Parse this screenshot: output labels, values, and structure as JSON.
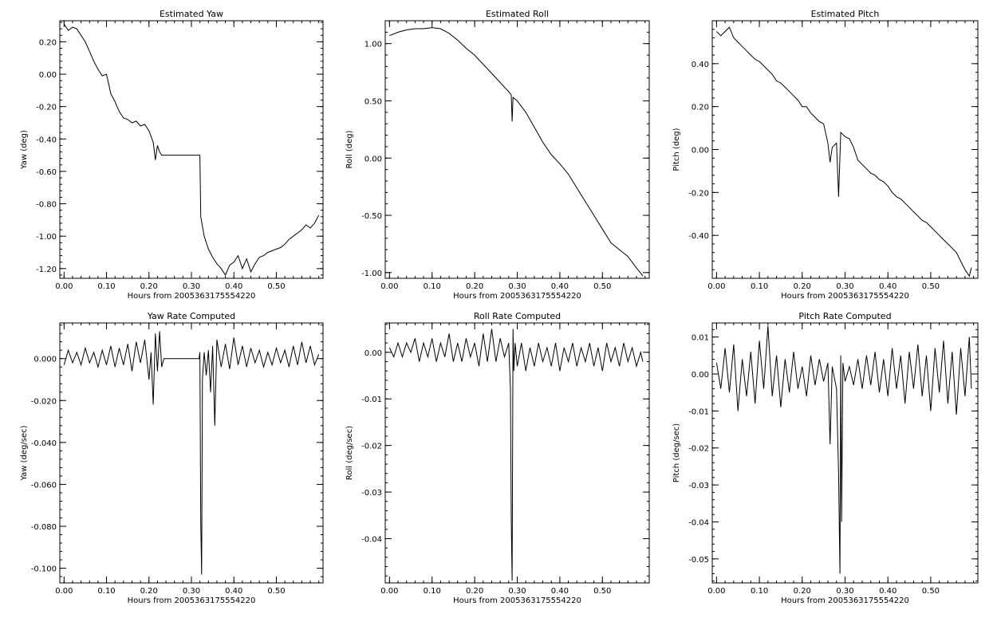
{
  "chart_data": [
    {
      "type": "line",
      "title": "Estimated Yaw",
      "xlabel": "Hours from 2005363175554220",
      "ylabel": "Yaw (deg)",
      "xlim": [
        -0.01,
        0.61
      ],
      "ylim": [
        -1.26,
        0.33
      ],
      "x_ticks": [
        0.0,
        0.1,
        0.2,
        0.3,
        0.4,
        0.5
      ],
      "x_tick_labels": [
        "0.00",
        "0.10",
        "0.20",
        "0.30",
        "0.40",
        "0.50"
      ],
      "y_ticks": [
        0.2,
        0.0,
        -0.2,
        -0.4,
        -0.6,
        -0.8,
        -1.0,
        -1.2
      ],
      "y_tick_labels": [
        "0.20",
        "0.00",
        "-0.20",
        "-0.40",
        "-0.60",
        "-0.80",
        "-1.00",
        "-1.20"
      ],
      "grid": false,
      "series": [
        {
          "x": [
            0.0,
            0.01,
            0.02,
            0.03,
            0.04,
            0.05,
            0.06,
            0.07,
            0.08,
            0.09,
            0.1,
            0.11,
            0.12,
            0.13,
            0.14,
            0.15,
            0.16,
            0.17,
            0.18,
            0.19,
            0.2,
            0.21,
            0.215,
            0.22,
            0.225,
            0.23,
            0.24,
            0.25,
            0.26,
            0.27,
            0.28,
            0.29,
            0.3,
            0.31,
            0.32,
            0.322,
            0.33,
            0.34,
            0.35,
            0.36,
            0.37,
            0.38,
            0.39,
            0.4,
            0.41,
            0.42,
            0.43,
            0.44,
            0.45,
            0.46,
            0.47,
            0.48,
            0.49,
            0.5,
            0.51,
            0.52,
            0.53,
            0.54,
            0.55,
            0.56,
            0.57,
            0.58,
            0.59,
            0.6
          ],
          "y": [
            0.31,
            0.27,
            0.29,
            0.28,
            0.24,
            0.2,
            0.14,
            0.08,
            0.03,
            -0.01,
            0.0,
            -0.12,
            -0.17,
            -0.23,
            -0.27,
            -0.28,
            -0.3,
            -0.29,
            -0.32,
            -0.31,
            -0.35,
            -0.42,
            -0.53,
            -0.44,
            -0.48,
            -0.5,
            -0.5,
            -0.5,
            -0.5,
            -0.5,
            -0.5,
            -0.5,
            -0.5,
            -0.5,
            -0.5,
            -0.88,
            -1.0,
            -1.08,
            -1.13,
            -1.17,
            -1.2,
            -1.24,
            -1.18,
            -1.16,
            -1.12,
            -1.2,
            -1.14,
            -1.22,
            -1.17,
            -1.13,
            -1.12,
            -1.1,
            -1.09,
            -1.08,
            -1.07,
            -1.05,
            -1.02,
            -1.0,
            -0.98,
            -0.96,
            -0.93,
            -0.95,
            -0.92,
            -0.87
          ]
        }
      ]
    },
    {
      "type": "line",
      "title": "Estimated Roll",
      "xlabel": "Hours from 2005363175554220",
      "ylabel": "Roll (deg)",
      "xlim": [
        -0.01,
        0.61
      ],
      "ylim": [
        -1.05,
        1.2
      ],
      "x_ticks": [
        0.0,
        0.1,
        0.2,
        0.3,
        0.4,
        0.5
      ],
      "x_tick_labels": [
        "0.00",
        "0.10",
        "0.20",
        "0.30",
        "0.40",
        "0.50"
      ],
      "y_ticks": [
        1.0,
        0.5,
        0.0,
        -0.5,
        -1.0
      ],
      "y_tick_labels": [
        "1.00",
        "0.50",
        "0.00",
        "-0.50",
        "-1.00"
      ],
      "grid": false,
      "series": [
        {
          "x": [
            0.0,
            0.02,
            0.04,
            0.06,
            0.08,
            0.1,
            0.12,
            0.14,
            0.16,
            0.18,
            0.2,
            0.22,
            0.24,
            0.26,
            0.28,
            0.286,
            0.288,
            0.29,
            0.3,
            0.32,
            0.34,
            0.36,
            0.38,
            0.4,
            0.42,
            0.44,
            0.46,
            0.48,
            0.5,
            0.52,
            0.54,
            0.56,
            0.58,
            0.595
          ],
          "y": [
            1.07,
            1.1,
            1.12,
            1.13,
            1.13,
            1.14,
            1.13,
            1.09,
            1.03,
            0.96,
            0.9,
            0.82,
            0.74,
            0.66,
            0.58,
            0.55,
            0.32,
            0.53,
            0.5,
            0.4,
            0.27,
            0.14,
            0.03,
            -0.05,
            -0.14,
            -0.26,
            -0.38,
            -0.5,
            -0.62,
            -0.74,
            -0.8,
            -0.86,
            -0.96,
            -1.03
          ]
        }
      ]
    },
    {
      "type": "line",
      "title": "Estimated Pitch",
      "xlabel": "Hours from 2005363175554220",
      "ylabel": "Pitch (deg)",
      "xlim": [
        -0.01,
        0.61
      ],
      "ylim": [
        -0.6,
        0.6
      ],
      "x_ticks": [
        0.0,
        0.1,
        0.2,
        0.3,
        0.4,
        0.5
      ],
      "x_tick_labels": [
        "0.00",
        "0.10",
        "0.20",
        "0.30",
        "0.40",
        "0.50"
      ],
      "y_ticks": [
        0.4,
        0.2,
        0.0,
        -0.2,
        -0.4
      ],
      "y_tick_labels": [
        "0.40",
        "0.20",
        "0.00",
        "-0.20",
        "-0.40"
      ],
      "grid": false,
      "series": [
        {
          "x": [
            0.0,
            0.01,
            0.02,
            0.03,
            0.04,
            0.05,
            0.06,
            0.07,
            0.08,
            0.09,
            0.1,
            0.11,
            0.12,
            0.13,
            0.14,
            0.15,
            0.16,
            0.17,
            0.18,
            0.19,
            0.2,
            0.21,
            0.22,
            0.23,
            0.24,
            0.25,
            0.26,
            0.265,
            0.27,
            0.28,
            0.285,
            0.29,
            0.295,
            0.3,
            0.31,
            0.32,
            0.33,
            0.34,
            0.35,
            0.36,
            0.37,
            0.38,
            0.39,
            0.4,
            0.41,
            0.42,
            0.43,
            0.44,
            0.45,
            0.46,
            0.47,
            0.48,
            0.49,
            0.5,
            0.51,
            0.52,
            0.53,
            0.54,
            0.55,
            0.56,
            0.57,
            0.58,
            0.59,
            0.595
          ],
          "y": [
            0.55,
            0.53,
            0.55,
            0.57,
            0.52,
            0.5,
            0.48,
            0.46,
            0.44,
            0.42,
            0.41,
            0.39,
            0.37,
            0.35,
            0.32,
            0.31,
            0.29,
            0.27,
            0.25,
            0.23,
            0.2,
            0.2,
            0.17,
            0.15,
            0.13,
            0.12,
            0.03,
            -0.06,
            0.01,
            0.03,
            -0.22,
            0.08,
            0.07,
            0.06,
            0.05,
            0.01,
            -0.05,
            -0.07,
            -0.09,
            -0.11,
            -0.12,
            -0.14,
            -0.15,
            -0.17,
            -0.2,
            -0.22,
            -0.23,
            -0.25,
            -0.27,
            -0.29,
            -0.31,
            -0.33,
            -0.34,
            -0.36,
            -0.38,
            -0.4,
            -0.42,
            -0.44,
            -0.46,
            -0.48,
            -0.52,
            -0.56,
            -0.59,
            -0.55
          ]
        }
      ]
    },
    {
      "type": "line",
      "title": "Yaw Rate Computed",
      "xlabel": "Hours from 2005363175554220",
      "ylabel": "Yaw (deg/sec)",
      "xlim": [
        -0.01,
        0.61
      ],
      "ylim": [
        -0.107,
        0.017
      ],
      "x_ticks": [
        0.0,
        0.1,
        0.2,
        0.3,
        0.4,
        0.5
      ],
      "x_tick_labels": [
        "0.00",
        "0.10",
        "0.20",
        "0.30",
        "0.40",
        "0.50"
      ],
      "y_ticks": [
        0.0,
        -0.02,
        -0.04,
        -0.06,
        -0.08,
        -0.1
      ],
      "y_tick_labels": [
        "0.000",
        "-0.020",
        "-0.040",
        "-0.060",
        "-0.080",
        "-0.100"
      ],
      "grid": false,
      "series": [
        {
          "x": [
            0.0,
            0.01,
            0.02,
            0.03,
            0.04,
            0.05,
            0.06,
            0.07,
            0.08,
            0.09,
            0.1,
            0.11,
            0.12,
            0.13,
            0.14,
            0.15,
            0.16,
            0.17,
            0.18,
            0.19,
            0.2,
            0.205,
            0.21,
            0.215,
            0.22,
            0.225,
            0.23,
            0.235,
            0.24,
            0.25,
            0.26,
            0.27,
            0.28,
            0.29,
            0.3,
            0.31,
            0.318,
            0.32,
            0.322,
            0.324,
            0.326,
            0.33,
            0.335,
            0.34,
            0.345,
            0.35,
            0.355,
            0.36,
            0.37,
            0.38,
            0.39,
            0.4,
            0.41,
            0.42,
            0.43,
            0.44,
            0.45,
            0.46,
            0.47,
            0.48,
            0.49,
            0.5,
            0.51,
            0.52,
            0.53,
            0.54,
            0.55,
            0.56,
            0.57,
            0.58,
            0.59,
            0.6
          ],
          "y": [
            -0.003,
            0.004,
            -0.002,
            0.003,
            -0.003,
            0.005,
            -0.002,
            0.003,
            -0.004,
            0.004,
            -0.003,
            0.006,
            -0.004,
            0.005,
            -0.003,
            0.007,
            -0.006,
            0.008,
            -0.002,
            0.009,
            -0.01,
            0.003,
            -0.022,
            0.012,
            -0.006,
            0.013,
            -0.004,
            0.0,
            0.0,
            0.0,
            0.0,
            0.0,
            0.0,
            0.0,
            0.0,
            0.0,
            0.0,
            0.003,
            -0.078,
            -0.103,
            -0.01,
            0.003,
            -0.008,
            0.004,
            -0.016,
            0.006,
            -0.032,
            0.009,
            -0.004,
            0.007,
            -0.005,
            0.01,
            -0.003,
            0.006,
            -0.004,
            0.005,
            -0.002,
            0.004,
            -0.004,
            0.003,
            -0.003,
            0.005,
            -0.002,
            0.004,
            -0.004,
            0.006,
            -0.003,
            0.008,
            -0.002,
            0.006,
            -0.003,
            0.002
          ]
        }
      ]
    },
    {
      "type": "line",
      "title": "Roll Rate Computed",
      "xlabel": "Hours from 2005363175554220",
      "ylabel": "Roll (deg/sec)",
      "xlim": [
        -0.01,
        0.61
      ],
      "ylim": [
        -0.0495,
        0.0063
      ],
      "x_ticks": [
        0.0,
        0.1,
        0.2,
        0.3,
        0.4,
        0.5
      ],
      "x_tick_labels": [
        "0.00",
        "0.10",
        "0.20",
        "0.30",
        "0.40",
        "0.50"
      ],
      "y_ticks": [
        0.0,
        -0.01,
        -0.02,
        -0.03,
        -0.04
      ],
      "y_tick_labels": [
        "0.00",
        "-0.01",
        "-0.02",
        "-0.03",
        "-0.04"
      ],
      "grid": false,
      "series": [
        {
          "x": [
            0.0,
            0.01,
            0.02,
            0.03,
            0.04,
            0.05,
            0.06,
            0.07,
            0.08,
            0.09,
            0.1,
            0.11,
            0.12,
            0.13,
            0.14,
            0.15,
            0.16,
            0.17,
            0.18,
            0.19,
            0.2,
            0.21,
            0.22,
            0.23,
            0.24,
            0.25,
            0.26,
            0.27,
            0.28,
            0.284,
            0.286,
            0.288,
            0.29,
            0.292,
            0.295,
            0.3,
            0.31,
            0.32,
            0.33,
            0.34,
            0.35,
            0.36,
            0.37,
            0.38,
            0.39,
            0.4,
            0.41,
            0.42,
            0.43,
            0.44,
            0.45,
            0.46,
            0.47,
            0.48,
            0.49,
            0.5,
            0.51,
            0.52,
            0.53,
            0.54,
            0.55,
            0.56,
            0.57,
            0.58,
            0.59,
            0.595
          ],
          "y": [
            0.001,
            -0.001,
            0.002,
            -0.001,
            0.002,
            0.0,
            0.003,
            -0.002,
            0.002,
            -0.001,
            0.003,
            -0.002,
            0.002,
            -0.001,
            0.004,
            -0.002,
            0.002,
            -0.002,
            0.003,
            -0.001,
            0.002,
            -0.003,
            0.004,
            -0.002,
            0.005,
            -0.002,
            0.003,
            -0.001,
            0.002,
            -0.008,
            -0.036,
            -0.049,
            0.005,
            -0.004,
            0.002,
            -0.003,
            0.002,
            -0.004,
            0.001,
            -0.003,
            0.002,
            -0.002,
            0.001,
            -0.003,
            0.002,
            -0.004,
            0.001,
            -0.002,
            0.002,
            -0.003,
            0.001,
            -0.002,
            0.002,
            -0.003,
            0.001,
            -0.004,
            0.002,
            -0.002,
            0.001,
            -0.003,
            0.002,
            -0.002,
            0.001,
            -0.003,
            0.0,
            -0.002
          ]
        }
      ]
    },
    {
      "type": "line",
      "title": "Pitch Rate Computed",
      "xlabel": "Hours from 2005363175554220",
      "ylabel": "Pitch (deg/sec)",
      "xlim": [
        -0.01,
        0.61
      ],
      "ylim": [
        -0.0565,
        0.0138
      ],
      "x_ticks": [
        0.0,
        0.1,
        0.2,
        0.3,
        0.4,
        0.5
      ],
      "x_tick_labels": [
        "0.00",
        "0.10",
        "0.20",
        "0.30",
        "0.40",
        "0.50"
      ],
      "y_ticks": [
        0.01,
        0.0,
        -0.01,
        -0.02,
        -0.03,
        -0.04,
        -0.05
      ],
      "y_tick_labels": [
        "0.01",
        "0.00",
        "-0.01",
        "-0.02",
        "-0.03",
        "-0.04",
        "-0.05"
      ],
      "grid": false,
      "series": [
        {
          "x": [
            0.0,
            0.01,
            0.02,
            0.03,
            0.04,
            0.05,
            0.06,
            0.07,
            0.08,
            0.09,
            0.1,
            0.11,
            0.12,
            0.13,
            0.14,
            0.15,
            0.16,
            0.17,
            0.18,
            0.19,
            0.2,
            0.21,
            0.22,
            0.23,
            0.24,
            0.25,
            0.26,
            0.265,
            0.27,
            0.28,
            0.285,
            0.288,
            0.29,
            0.292,
            0.295,
            0.3,
            0.31,
            0.32,
            0.33,
            0.34,
            0.35,
            0.36,
            0.37,
            0.38,
            0.39,
            0.4,
            0.41,
            0.42,
            0.43,
            0.44,
            0.45,
            0.46,
            0.47,
            0.48,
            0.49,
            0.5,
            0.51,
            0.52,
            0.53,
            0.54,
            0.55,
            0.56,
            0.57,
            0.58,
            0.59,
            0.595
          ],
          "y": [
            0.003,
            -0.004,
            0.007,
            -0.005,
            0.008,
            -0.01,
            0.004,
            -0.006,
            0.006,
            -0.008,
            0.009,
            -0.004,
            0.013,
            -0.006,
            0.005,
            -0.009,
            0.004,
            -0.005,
            0.006,
            -0.004,
            0.002,
            -0.006,
            0.005,
            -0.003,
            0.004,
            -0.002,
            0.003,
            -0.019,
            0.002,
            -0.004,
            -0.027,
            -0.054,
            0.005,
            -0.04,
            0.003,
            -0.002,
            0.002,
            -0.003,
            0.004,
            -0.004,
            0.005,
            -0.003,
            0.006,
            -0.005,
            0.004,
            -0.006,
            0.007,
            -0.004,
            0.005,
            -0.008,
            0.006,
            -0.004,
            0.008,
            -0.006,
            0.005,
            -0.01,
            0.007,
            -0.005,
            0.009,
            -0.008,
            0.006,
            -0.011,
            0.007,
            -0.006,
            0.01,
            -0.004
          ]
        }
      ]
    }
  ]
}
